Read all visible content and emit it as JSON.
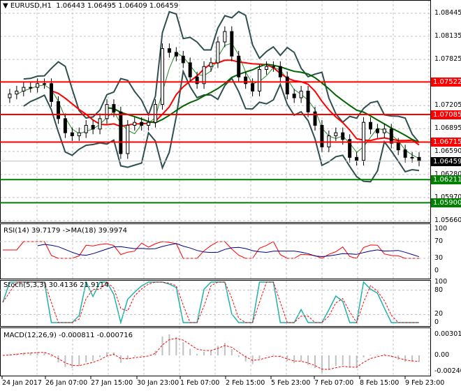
{
  "header": {
    "symbol": "EURUSD,H1",
    "open": "1.06443",
    "high": "1.06495",
    "low": "1.06409",
    "close": "1.06459"
  },
  "chart_data": [
    {
      "type": "line",
      "title": "EURUSD,H1",
      "ylim": [
        1.0566,
        1.0845
      ],
      "y_ticks": [
        "1.08445",
        "1.08135",
        "1.07825",
        "1.07205",
        "1.06895",
        "1.06590",
        "1.06280",
        "1.05970",
        "1.05660"
      ],
      "x_ticks": [
        "24 Jan 2017",
        "26 Jan 07:00",
        "27 Jan 15:00",
        "30 Jan 23:00",
        "1 Feb 07:00",
        "2 Feb 15:00",
        "5 Feb 23:00",
        "7 Feb 07:00",
        "8 Feb 15:00",
        "9 Feb 23:00"
      ],
      "close": [
        1.0731,
        1.0736,
        1.074,
        1.0745,
        1.0745,
        1.075,
        1.075,
        1.0726,
        1.0703,
        1.0684,
        1.068,
        1.0684,
        1.0694,
        1.0689,
        1.0703,
        1.0722,
        1.0712,
        1.0656,
        1.0694,
        1.0698,
        1.0694,
        1.0698,
        1.0722,
        1.0797,
        1.0792,
        1.0787,
        1.0778,
        1.0759,
        1.075,
        1.0773,
        1.0778,
        1.0806,
        1.082,
        1.0787,
        1.0759,
        1.075,
        1.074,
        1.0769,
        1.0773,
        1.0773,
        1.0759,
        1.0736,
        1.0731,
        1.074,
        1.0712,
        1.0694,
        1.0665,
        1.068,
        1.0684,
        1.0675,
        1.0651,
        1.0647,
        1.0698,
        1.0689,
        1.0684,
        1.0689,
        1.067,
        1.0661,
        1.0651,
        1.0651,
        1.0646
      ],
      "levels": [
        {
          "value": "1.07522",
          "color": "#ff0000"
        },
        {
          "value": "1.07085",
          "color": "#ff0000"
        },
        {
          "value": "1.06715",
          "color": "#ff0000"
        },
        {
          "value": "1.06211",
          "color": "#008000"
        },
        {
          "value": "1.05900",
          "color": "#008000"
        }
      ],
      "current": {
        "value": "1.06459",
        "color": "#000000"
      }
    },
    {
      "type": "line",
      "title": "RSI(14) 39.7179  ->MA(18) 39.9974",
      "ylim": [
        0,
        100
      ],
      "y_ticks": [
        "100",
        "70",
        "30",
        "0"
      ],
      "series": [
        {
          "name": "RSI(14)",
          "color": "#ff0000"
        },
        {
          "name": "MA(18)",
          "color": "#000080"
        }
      ]
    },
    {
      "type": "line",
      "title": "Stoch(5,3,3) 30.4136 21.9114",
      "ylim": [
        0,
        100
      ],
      "y_ticks": [
        "100",
        "80",
        "20",
        "0"
      ],
      "series": [
        {
          "name": "%K",
          "color": "#20b2aa"
        },
        {
          "name": "%D",
          "color": "#ff0000"
        }
      ]
    },
    {
      "type": "bar",
      "title": "MACD(12,26,9) -0.000811 -0.000716",
      "ylim": [
        -0.002409,
        0.003016
      ],
      "y_ticks": [
        "0.003016",
        "0.00",
        "-0.002409"
      ],
      "series": [
        {
          "name": "MACD",
          "color": "#c0c0c0"
        },
        {
          "name": "Signal",
          "color": "#ff0000"
        }
      ]
    }
  ]
}
